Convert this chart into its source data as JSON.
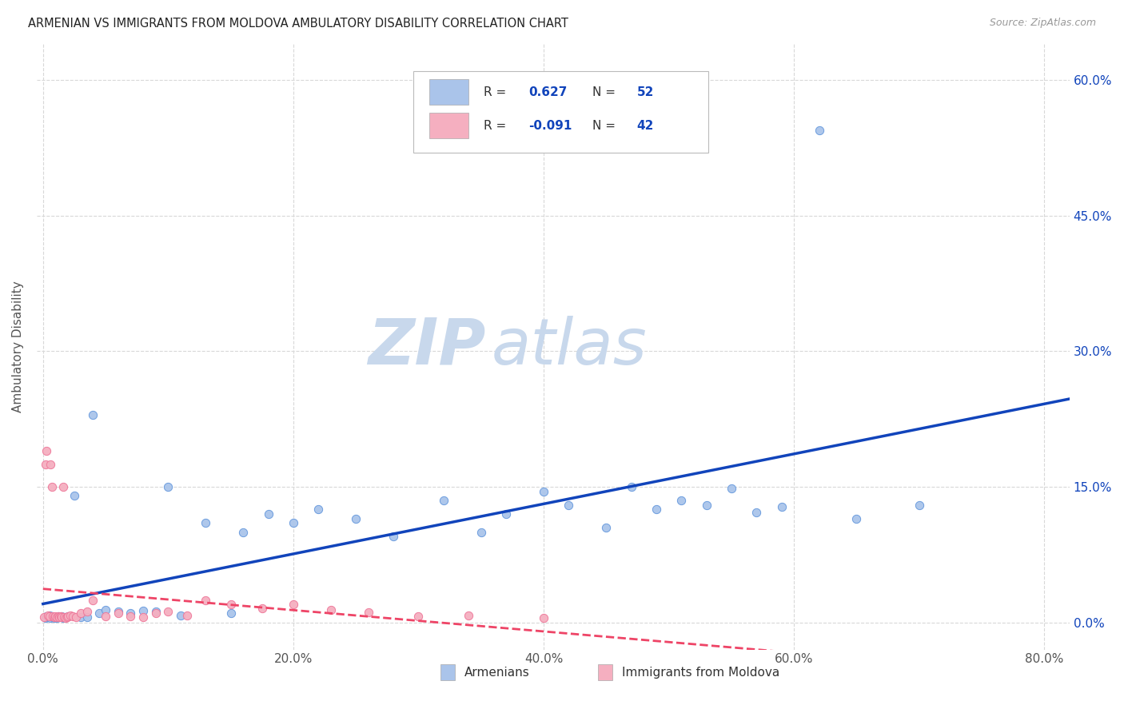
{
  "title": "ARMENIAN VS IMMIGRANTS FROM MOLDOVA AMBULATORY DISABILITY CORRELATION CHART",
  "source": "Source: ZipAtlas.com",
  "ylabel": "Ambulatory Disability",
  "x_tick_labels": [
    "0.0%",
    "20.0%",
    "40.0%",
    "60.0%",
    "80.0%"
  ],
  "x_tick_values": [
    0.0,
    0.2,
    0.4,
    0.6,
    0.8
  ],
  "y_tick_labels_right": [
    "0.0%",
    "15.0%",
    "30.0%",
    "45.0%",
    "60.0%"
  ],
  "y_tick_values": [
    0.0,
    0.15,
    0.3,
    0.45,
    0.6
  ],
  "xlim": [
    -0.005,
    0.82
  ],
  "ylim": [
    -0.03,
    0.64
  ],
  "armenians_color": "#aac4ea",
  "moldova_color": "#f5afc0",
  "armenians_edge_color": "#6699dd",
  "moldova_edge_color": "#ee7799",
  "armenians_line_color": "#1144bb",
  "moldova_line_color": "#ee4466",
  "legend_r_armenians": "0.627",
  "legend_n_armenians": "52",
  "legend_r_moldova": "-0.091",
  "legend_n_moldova": "42",
  "watermark_zip": "ZIP",
  "watermark_atlas": "atlas",
  "watermark_color": "#c8d8ec",
  "background_color": "#ffffff",
  "grid_color": "#d8d8d8",
  "armenians_x": [
    0.002,
    0.003,
    0.004,
    0.005,
    0.006,
    0.007,
    0.008,
    0.009,
    0.01,
    0.011,
    0.012,
    0.013,
    0.015,
    0.016,
    0.018,
    0.02,
    0.025,
    0.03,
    0.035,
    0.04,
    0.045,
    0.05,
    0.06,
    0.07,
    0.08,
    0.09,
    0.1,
    0.11,
    0.13,
    0.15,
    0.16,
    0.18,
    0.2,
    0.22,
    0.25,
    0.28,
    0.32,
    0.35,
    0.37,
    0.4,
    0.42,
    0.45,
    0.47,
    0.49,
    0.51,
    0.53,
    0.55,
    0.57,
    0.59,
    0.62,
    0.65,
    0.7
  ],
  "armenians_y": [
    0.005,
    0.007,
    0.006,
    0.008,
    0.005,
    0.007,
    0.006,
    0.005,
    0.006,
    0.005,
    0.007,
    0.006,
    0.007,
    0.005,
    0.006,
    0.007,
    0.14,
    0.006,
    0.006,
    0.23,
    0.01,
    0.014,
    0.012,
    0.01,
    0.013,
    0.012,
    0.15,
    0.008,
    0.11,
    0.01,
    0.1,
    0.12,
    0.11,
    0.125,
    0.115,
    0.095,
    0.135,
    0.1,
    0.12,
    0.145,
    0.13,
    0.105,
    0.15,
    0.125,
    0.135,
    0.13,
    0.148,
    0.122,
    0.128,
    0.545,
    0.115,
    0.13
  ],
  "moldova_x": [
    0.001,
    0.002,
    0.003,
    0.004,
    0.005,
    0.006,
    0.007,
    0.008,
    0.009,
    0.01,
    0.011,
    0.012,
    0.013,
    0.014,
    0.015,
    0.016,
    0.017,
    0.018,
    0.019,
    0.02,
    0.022,
    0.024,
    0.026,
    0.03,
    0.035,
    0.04,
    0.05,
    0.06,
    0.07,
    0.08,
    0.09,
    0.1,
    0.115,
    0.13,
    0.15,
    0.175,
    0.2,
    0.23,
    0.26,
    0.3,
    0.34,
    0.4
  ],
  "moldova_y": [
    0.006,
    0.175,
    0.19,
    0.008,
    0.007,
    0.175,
    0.15,
    0.007,
    0.006,
    0.007,
    0.006,
    0.007,
    0.006,
    0.007,
    0.006,
    0.15,
    0.006,
    0.005,
    0.006,
    0.007,
    0.008,
    0.007,
    0.006,
    0.01,
    0.012,
    0.024,
    0.007,
    0.01,
    0.007,
    0.006,
    0.01,
    0.012,
    0.008,
    0.024,
    0.02,
    0.016,
    0.02,
    0.014,
    0.011,
    0.007,
    0.008,
    0.005
  ]
}
